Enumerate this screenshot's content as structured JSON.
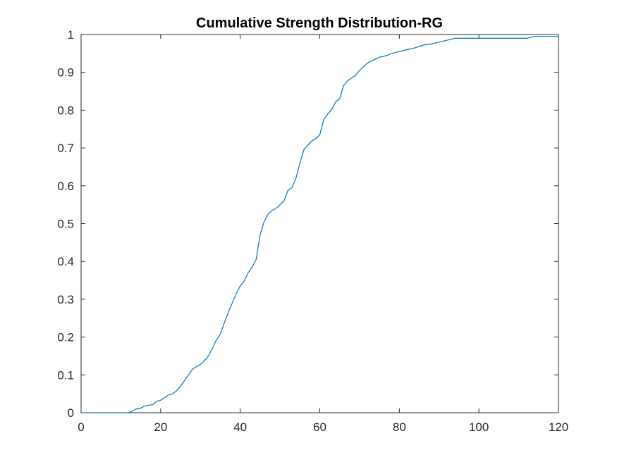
{
  "chart_data": {
    "type": "line",
    "title": "Cumulative Strength Distribution-RG",
    "xlabel": "",
    "ylabel": "",
    "xlim": [
      0,
      120
    ],
    "ylim": [
      0,
      1
    ],
    "grid": false,
    "line_color": "#0072BD",
    "axis_color": "#262626",
    "x_ticks": [
      0,
      20,
      40,
      60,
      80,
      100,
      120
    ],
    "x_tick_labels": [
      "0",
      "20",
      "40",
      "60",
      "80",
      "100",
      "120"
    ],
    "y_ticks": [
      0,
      0.1,
      0.2,
      0.3,
      0.4,
      0.5,
      0.6,
      0.7,
      0.8,
      0.9,
      1
    ],
    "y_tick_labels": [
      "0",
      "0.1",
      "0.2",
      "0.3",
      "0.4",
      "0.5",
      "0.6",
      "0.7",
      "0.8",
      "0.9",
      "1"
    ],
    "series": [
      {
        "x": [
          0,
          12,
          14,
          15,
          16,
          17,
          18,
          19,
          20,
          21,
          22,
          23,
          24,
          25,
          26,
          27,
          28,
          29,
          30,
          31,
          32,
          33,
          34,
          35,
          36,
          37,
          38,
          39,
          40,
          41,
          42,
          43,
          44,
          45,
          46,
          47,
          48,
          49,
          50,
          51,
          52,
          53,
          54,
          55,
          56,
          57,
          58,
          59,
          60,
          61,
          62,
          63,
          64,
          65,
          66,
          67,
          68,
          69,
          70,
          71,
          72,
          73,
          74,
          75,
          76,
          77,
          78,
          80,
          82,
          84,
          86,
          88,
          90,
          92,
          94,
          100,
          106,
          112,
          114,
          120
        ],
        "y": [
          0,
          0,
          0.01,
          0.012,
          0.018,
          0.02,
          0.021,
          0.03,
          0.033,
          0.04,
          0.047,
          0.05,
          0.058,
          0.07,
          0.085,
          0.1,
          0.115,
          0.122,
          0.128,
          0.137,
          0.15,
          0.17,
          0.192,
          0.208,
          0.238,
          0.265,
          0.29,
          0.315,
          0.335,
          0.348,
          0.37,
          0.385,
          0.405,
          0.47,
          0.505,
          0.525,
          0.535,
          0.54,
          0.55,
          0.56,
          0.588,
          0.595,
          0.62,
          0.66,
          0.695,
          0.708,
          0.718,
          0.725,
          0.735,
          0.775,
          0.79,
          0.802,
          0.822,
          0.83,
          0.865,
          0.878,
          0.885,
          0.892,
          0.905,
          0.915,
          0.925,
          0.93,
          0.935,
          0.94,
          0.942,
          0.945,
          0.95,
          0.955,
          0.96,
          0.965,
          0.972,
          0.975,
          0.98,
          0.985,
          0.99,
          0.99,
          0.99,
          0.99,
          0.995,
          0.995
        ]
      }
    ]
  }
}
